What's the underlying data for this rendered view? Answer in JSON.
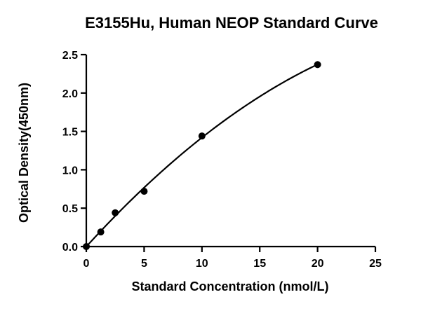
{
  "chart_data": {
    "type": "scatter",
    "title": "E3155Hu, Human NEOP Standard Curve",
    "xlabel": "Standard Concentration (nmol/L)",
    "ylabel": "Optical Density(450nm)",
    "xlim": [
      0,
      25
    ],
    "ylim": [
      0,
      2.5
    ],
    "xticks": [
      0,
      5,
      10,
      15,
      20,
      25
    ],
    "yticks": [
      0,
      0.5,
      1.0,
      1.5,
      2.0,
      2.5
    ],
    "xtick_labels": [
      "0",
      "5",
      "10",
      "15",
      "20",
      "25"
    ],
    "ytick_labels": [
      "0.0",
      "0.5",
      "1.0",
      "1.5",
      "2.0",
      "2.5"
    ],
    "grid": false,
    "legend": "none",
    "series": [
      {
        "x": [
          0,
          1.25,
          2.5,
          5,
          10,
          20
        ],
        "y": [
          0.0,
          0.19,
          0.44,
          0.72,
          1.44,
          2.37
        ],
        "marker": "circle",
        "fit": "smooth-curve"
      }
    ]
  }
}
